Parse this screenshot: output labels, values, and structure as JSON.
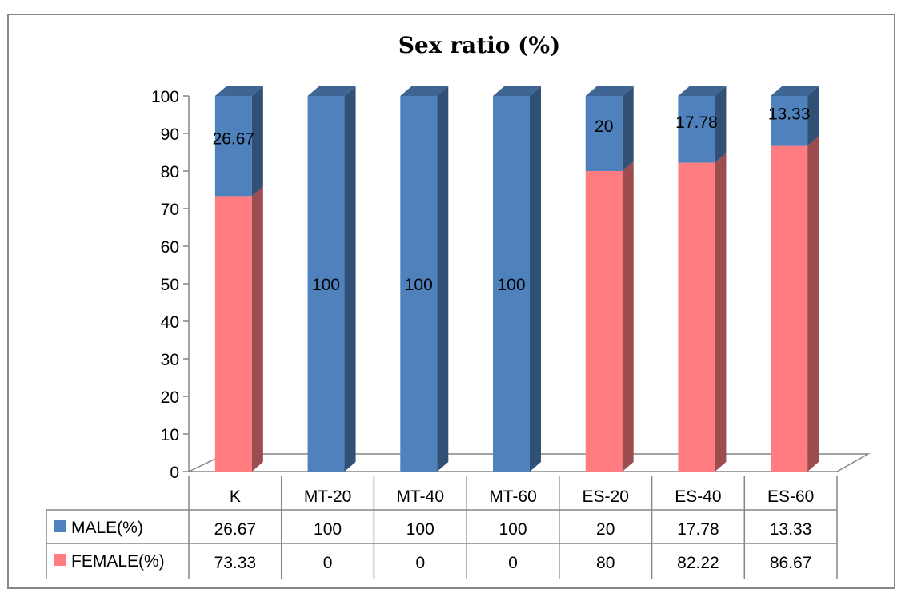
{
  "chart_data": {
    "type": "bar",
    "stacked": true,
    "three_d": true,
    "title": "Sex ratio (%)",
    "categories": [
      "K",
      "MT-20",
      "MT-40",
      "MT-60",
      "ES-20",
      "ES-40",
      "ES-60"
    ],
    "series": [
      {
        "name": "MALE(%)",
        "values": [
          26.67,
          100,
          100,
          100,
          20,
          17.78,
          13.33
        ],
        "color": "#4f81bd"
      },
      {
        "name": "FEMALE(%)",
        "values": [
          73.33,
          0,
          0,
          0,
          80,
          82.22,
          86.67
        ],
        "color": "#ff7c80"
      }
    ],
    "male_labels": [
      "26.67",
      "100",
      "100",
      "100",
      "20",
      "17.78",
      "13.33"
    ],
    "female_labels": [
      "73.33",
      "0",
      "0",
      "0",
      "80",
      "82.22",
      "86.67"
    ],
    "yticks": [
      "0",
      "10",
      "20",
      "30",
      "40",
      "50",
      "60",
      "70",
      "80",
      "90",
      "100"
    ],
    "ylim": [
      0,
      100
    ],
    "grid": false,
    "legend": "data-table"
  }
}
